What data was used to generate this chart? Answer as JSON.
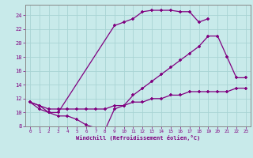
{
  "line1_x": [
    0,
    1,
    2,
    3,
    9,
    10,
    11,
    12,
    13,
    14,
    15,
    16,
    17,
    18,
    19
  ],
  "line1_y": [
    11.5,
    11.0,
    10.0,
    10.0,
    22.5,
    23.0,
    23.5,
    24.5,
    24.7,
    24.7,
    24.7,
    24.5,
    24.5,
    23.0,
    23.5
  ],
  "line2_x": [
    0,
    1,
    2,
    3,
    4,
    5,
    6,
    7,
    8,
    9,
    10,
    11,
    12,
    13,
    14,
    15,
    16,
    17,
    18,
    19,
    20,
    21,
    22,
    23
  ],
  "line2_y": [
    11.5,
    10.5,
    10.0,
    9.5,
    9.5,
    9.0,
    8.2,
    7.8,
    7.5,
    10.5,
    11.0,
    12.5,
    13.5,
    14.5,
    15.5,
    16.5,
    17.5,
    18.5,
    19.5,
    21.0,
    21.0,
    18.0,
    15.0,
    15.0
  ],
  "line3_x": [
    0,
    1,
    2,
    3,
    4,
    5,
    6,
    7,
    8,
    9,
    10,
    11,
    12,
    13,
    14,
    15,
    16,
    17,
    18,
    19,
    20,
    21,
    22,
    23
  ],
  "line3_y": [
    11.5,
    11.0,
    10.5,
    10.5,
    10.5,
    10.5,
    10.5,
    10.5,
    10.5,
    11.0,
    11.0,
    11.5,
    11.5,
    12.0,
    12.0,
    12.5,
    12.5,
    13.0,
    13.0,
    13.0,
    13.0,
    13.0,
    13.5,
    13.5
  ],
  "line_color": "#800080",
  "bg_color": "#c8eaea",
  "grid_color": "#a8d4d4",
  "xlabel": "Windchill (Refroidissement éolien,°C)",
  "xlim": [
    -0.5,
    23.5
  ],
  "ylim": [
    8,
    25.5
  ],
  "yticks": [
    8,
    10,
    12,
    14,
    16,
    18,
    20,
    22,
    24
  ],
  "xticks": [
    0,
    1,
    2,
    3,
    4,
    5,
    6,
    7,
    8,
    9,
    10,
    11,
    12,
    13,
    14,
    15,
    16,
    17,
    18,
    19,
    20,
    21,
    22,
    23
  ],
  "marker": "+"
}
